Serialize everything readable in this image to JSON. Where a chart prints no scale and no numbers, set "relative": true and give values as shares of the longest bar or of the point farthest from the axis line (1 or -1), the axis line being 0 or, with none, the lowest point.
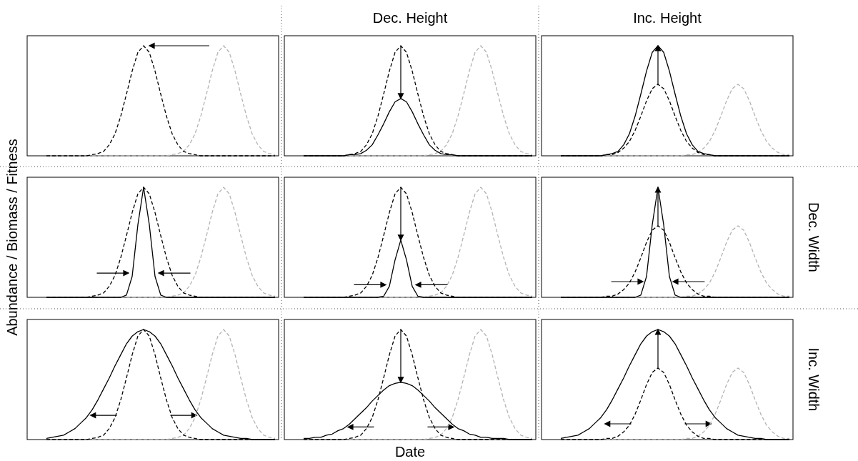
{
  "chart_data": [
    {
      "type": "line",
      "relative": true,
      "categories": [
        null,
        null,
        null,
        null,
        null,
        null,
        null,
        null,
        null,
        null,
        null,
        null,
        null,
        null,
        null,
        null,
        null,
        null,
        null,
        null,
        null,
        null,
        null,
        null,
        null,
        null,
        null,
        null,
        null,
        null,
        null,
        null,
        null,
        null,
        null,
        null,
        null,
        null,
        null,
        null,
        null
      ],
      "series": [
        {
          "color": "#b3b3b3",
          "line_style": "dashed",
          "values": [
            0,
            0,
            0,
            0,
            0,
            0,
            0,
            0,
            0,
            0,
            0,
            0,
            0,
            0,
            0,
            0,
            0,
            0,
            0,
            0,
            0,
            0,
            0.01,
            0.02,
            0.04,
            0.1,
            0.2,
            0.36,
            0.56,
            0.77,
            0.94,
            1,
            0.94,
            0.77,
            0.56,
            0.36,
            0.2,
            0.1,
            0.04,
            0.02,
            0.01
          ]
        },
        {
          "color": "#000000",
          "line_style": "dashed",
          "values": [
            0,
            0,
            0,
            0,
            0,
            0,
            0,
            0,
            0.01,
            0.02,
            0.04,
            0.1,
            0.2,
            0.36,
            0.56,
            0.77,
            0.94,
            1,
            0.94,
            0.77,
            0.56,
            0.36,
            0.2,
            0.1,
            0.04,
            0.02,
            0.01,
            0,
            0,
            0,
            0,
            0,
            0,
            0,
            0,
            0,
            0,
            0,
            0,
            0,
            0
          ]
        }
      ]
    },
    {
      "type": "line",
      "relative": true,
      "title": "Dec. Height",
      "categories": [
        null,
        null,
        null,
        null,
        null,
        null,
        null,
        null,
        null,
        null,
        null,
        null,
        null,
        null,
        null,
        null,
        null,
        null,
        null,
        null,
        null,
        null,
        null,
        null,
        null,
        null,
        null,
        null,
        null,
        null,
        null,
        null,
        null,
        null,
        null,
        null,
        null,
        null,
        null,
        null,
        null
      ],
      "series": [
        {
          "color": "#b3b3b3",
          "line_style": "dashed",
          "values": [
            0,
            0,
            0,
            0,
            0,
            0,
            0,
            0,
            0,
            0,
            0,
            0,
            0,
            0,
            0,
            0,
            0,
            0,
            0,
            0,
            0,
            0,
            0.01,
            0.02,
            0.04,
            0.1,
            0.2,
            0.36,
            0.56,
            0.77,
            0.94,
            1,
            0.94,
            0.77,
            0.56,
            0.36,
            0.2,
            0.1,
            0.04,
            0.02,
            0.01
          ]
        },
        {
          "color": "#000000",
          "line_style": "dashed",
          "values": [
            0,
            0,
            0,
            0,
            0,
            0,
            0,
            0,
            0.01,
            0.02,
            0.04,
            0.1,
            0.2,
            0.36,
            0.56,
            0.77,
            0.94,
            1,
            0.94,
            0.77,
            0.56,
            0.36,
            0.2,
            0.1,
            0.04,
            0.02,
            0.01,
            0,
            0,
            0,
            0,
            0,
            0,
            0,
            0,
            0,
            0,
            0,
            0,
            0,
            0
          ]
        },
        {
          "color": "#000000",
          "line_style": "solid",
          "values": [
            0,
            0,
            0,
            0,
            0,
            0,
            0,
            0,
            0.01,
            0.01,
            0.02,
            0.05,
            0.1,
            0.19,
            0.29,
            0.4,
            0.49,
            0.52,
            0.49,
            0.4,
            0.29,
            0.19,
            0.1,
            0.05,
            0.02,
            0.01,
            0.01,
            0,
            0,
            0,
            0,
            0,
            0,
            0,
            0,
            0,
            0,
            0,
            0,
            0,
            0
          ]
        }
      ]
    },
    {
      "type": "line",
      "relative": true,
      "title": "Inc. Height",
      "categories": [
        null,
        null,
        null,
        null,
        null,
        null,
        null,
        null,
        null,
        null,
        null,
        null,
        null,
        null,
        null,
        null,
        null,
        null,
        null,
        null,
        null,
        null,
        null,
        null,
        null,
        null,
        null,
        null,
        null,
        null,
        null,
        null,
        null,
        null,
        null,
        null,
        null,
        null,
        null,
        null,
        null
      ],
      "series": [
        {
          "color": "#b3b3b3",
          "line_style": "dashed",
          "values": [
            0,
            0,
            0,
            0,
            0,
            0,
            0,
            0,
            0,
            0,
            0,
            0,
            0,
            0,
            0,
            0,
            0,
            0,
            0,
            0,
            0,
            0,
            0.01,
            0.01,
            0.03,
            0.07,
            0.13,
            0.23,
            0.36,
            0.5,
            0.61,
            0.65,
            0.61,
            0.5,
            0.36,
            0.23,
            0.13,
            0.07,
            0.03,
            0.01,
            0.01
          ]
        },
        {
          "color": "#000000",
          "line_style": "dashed",
          "values": [
            0,
            0,
            0,
            0,
            0,
            0,
            0,
            0,
            0.01,
            0.01,
            0.03,
            0.07,
            0.13,
            0.23,
            0.36,
            0.5,
            0.61,
            0.65,
            0.61,
            0.5,
            0.36,
            0.23,
            0.13,
            0.07,
            0.03,
            0.01,
            0.01,
            0,
            0,
            0,
            0,
            0,
            0,
            0,
            0,
            0,
            0,
            0,
            0,
            0,
            0
          ]
        },
        {
          "color": "#000000",
          "line_style": "solid",
          "values": [
            0,
            0,
            0,
            0,
            0,
            0,
            0,
            0,
            0.01,
            0.02,
            0.04,
            0.1,
            0.2,
            0.36,
            0.56,
            0.77,
            0.94,
            1,
            0.94,
            0.77,
            0.56,
            0.36,
            0.2,
            0.1,
            0.04,
            0.02,
            0.01,
            0,
            0,
            0,
            0,
            0,
            0,
            0,
            0,
            0,
            0,
            0,
            0,
            0,
            0
          ]
        }
      ]
    },
    {
      "type": "line",
      "relative": true,
      "ylabel": "Abundance / Biomass / Fitness",
      "categories": [
        null,
        null,
        null,
        null,
        null,
        null,
        null,
        null,
        null,
        null,
        null,
        null,
        null,
        null,
        null,
        null,
        null,
        null,
        null,
        null,
        null,
        null,
        null,
        null,
        null,
        null,
        null,
        null,
        null,
        null,
        null,
        null,
        null,
        null,
        null,
        null,
        null,
        null,
        null,
        null,
        null
      ],
      "series": [
        {
          "color": "#b3b3b3",
          "line_style": "dashed",
          "values": [
            0,
            0,
            0,
            0,
            0,
            0,
            0,
            0,
            0,
            0,
            0,
            0,
            0,
            0,
            0,
            0,
            0,
            0,
            0,
            0,
            0,
            0,
            0.01,
            0.02,
            0.04,
            0.1,
            0.2,
            0.36,
            0.56,
            0.77,
            0.94,
            1,
            0.94,
            0.77,
            0.56,
            0.36,
            0.2,
            0.1,
            0.04,
            0.02,
            0.01
          ]
        },
        {
          "color": "#000000",
          "line_style": "dashed",
          "values": [
            0,
            0,
            0,
            0,
            0,
            0,
            0,
            0,
            0.01,
            0.02,
            0.04,
            0.1,
            0.2,
            0.36,
            0.56,
            0.77,
            0.94,
            1,
            0.94,
            0.77,
            0.56,
            0.36,
            0.2,
            0.1,
            0.04,
            0.02,
            0.01,
            0,
            0,
            0,
            0,
            0,
            0,
            0,
            0,
            0,
            0,
            0,
            0,
            0,
            0
          ]
        },
        {
          "color": "#000000",
          "line_style": "solid",
          "values": [
            0,
            0,
            0,
            0,
            0,
            0,
            0,
            0,
            0,
            0,
            0,
            0,
            0,
            0,
            0.02,
            0.19,
            0.66,
            1,
            0.66,
            0.19,
            0.02,
            0,
            0,
            0,
            0,
            0,
            0,
            0,
            0,
            0,
            0,
            0,
            0,
            0,
            0,
            0,
            0,
            0,
            0,
            0,
            0
          ]
        }
      ]
    },
    {
      "type": "line",
      "relative": true,
      "categories": [
        null,
        null,
        null,
        null,
        null,
        null,
        null,
        null,
        null,
        null,
        null,
        null,
        null,
        null,
        null,
        null,
        null,
        null,
        null,
        null,
        null,
        null,
        null,
        null,
        null,
        null,
        null,
        null,
        null,
        null,
        null,
        null,
        null,
        null,
        null,
        null,
        null,
        null,
        null,
        null,
        null
      ],
      "series": [
        {
          "color": "#b3b3b3",
          "line_style": "dashed",
          "values": [
            0,
            0,
            0,
            0,
            0,
            0,
            0,
            0,
            0,
            0,
            0,
            0,
            0,
            0,
            0,
            0,
            0,
            0,
            0,
            0,
            0,
            0,
            0.01,
            0.02,
            0.04,
            0.1,
            0.2,
            0.36,
            0.56,
            0.77,
            0.94,
            1,
            0.94,
            0.77,
            0.56,
            0.36,
            0.2,
            0.1,
            0.04,
            0.02,
            0.01
          ]
        },
        {
          "color": "#000000",
          "line_style": "dashed",
          "values": [
            0,
            0,
            0,
            0,
            0,
            0,
            0,
            0,
            0.01,
            0.02,
            0.04,
            0.1,
            0.2,
            0.36,
            0.56,
            0.77,
            0.94,
            1,
            0.94,
            0.77,
            0.56,
            0.36,
            0.2,
            0.1,
            0.04,
            0.02,
            0.01,
            0,
            0,
            0,
            0,
            0,
            0,
            0,
            0,
            0,
            0,
            0,
            0,
            0,
            0
          ]
        },
        {
          "color": "#000000",
          "line_style": "solid",
          "values": [
            0,
            0,
            0,
            0,
            0,
            0,
            0,
            0,
            0,
            0,
            0,
            0,
            0,
            0,
            0.01,
            0.1,
            0.34,
            0.52,
            0.34,
            0.1,
            0.01,
            0,
            0,
            0,
            0,
            0,
            0,
            0,
            0,
            0,
            0,
            0,
            0,
            0,
            0,
            0,
            0,
            0,
            0,
            0,
            0
          ]
        }
      ]
    },
    {
      "type": "line",
      "relative": true,
      "y2label": "Dec. Width",
      "categories": [
        null,
        null,
        null,
        null,
        null,
        null,
        null,
        null,
        null,
        null,
        null,
        null,
        null,
        null,
        null,
        null,
        null,
        null,
        null,
        null,
        null,
        null,
        null,
        null,
        null,
        null,
        null,
        null,
        null,
        null,
        null,
        null,
        null,
        null,
        null,
        null,
        null,
        null,
        null,
        null,
        null
      ],
      "series": [
        {
          "color": "#b3b3b3",
          "line_style": "dashed",
          "values": [
            0,
            0,
            0,
            0,
            0,
            0,
            0,
            0,
            0,
            0,
            0,
            0,
            0,
            0,
            0,
            0,
            0,
            0,
            0,
            0,
            0,
            0,
            0.01,
            0.01,
            0.03,
            0.07,
            0.13,
            0.23,
            0.36,
            0.5,
            0.61,
            0.65,
            0.61,
            0.5,
            0.36,
            0.23,
            0.13,
            0.07,
            0.03,
            0.01,
            0.01
          ]
        },
        {
          "color": "#000000",
          "line_style": "dashed",
          "values": [
            0,
            0,
            0,
            0,
            0,
            0,
            0,
            0,
            0.01,
            0.01,
            0.03,
            0.07,
            0.13,
            0.23,
            0.36,
            0.5,
            0.61,
            0.65,
            0.61,
            0.5,
            0.36,
            0.23,
            0.13,
            0.07,
            0.03,
            0.01,
            0.01,
            0,
            0,
            0,
            0,
            0,
            0,
            0,
            0,
            0,
            0,
            0,
            0,
            0,
            0
          ]
        },
        {
          "color": "#000000",
          "line_style": "solid",
          "values": [
            0,
            0,
            0,
            0,
            0,
            0,
            0,
            0,
            0,
            0,
            0,
            0,
            0,
            0,
            0.02,
            0.19,
            0.66,
            1,
            0.66,
            0.19,
            0.02,
            0,
            0,
            0,
            0,
            0,
            0,
            0,
            0,
            0,
            0,
            0,
            0,
            0,
            0,
            0,
            0,
            0,
            0,
            0,
            0
          ]
        }
      ]
    },
    {
      "type": "line",
      "relative": true,
      "categories": [
        null,
        null,
        null,
        null,
        null,
        null,
        null,
        null,
        null,
        null,
        null,
        null,
        null,
        null,
        null,
        null,
        null,
        null,
        null,
        null,
        null,
        null,
        null,
        null,
        null,
        null,
        null,
        null,
        null,
        null,
        null,
        null,
        null,
        null,
        null,
        null,
        null,
        null,
        null,
        null,
        null
      ],
      "series": [
        {
          "color": "#b3b3b3",
          "line_style": "dashed",
          "values": [
            0,
            0,
            0,
            0,
            0,
            0,
            0,
            0,
            0,
            0,
            0,
            0,
            0,
            0,
            0,
            0,
            0,
            0,
            0,
            0,
            0,
            0,
            0.01,
            0.02,
            0.04,
            0.1,
            0.2,
            0.36,
            0.56,
            0.77,
            0.94,
            1,
            0.94,
            0.77,
            0.56,
            0.36,
            0.2,
            0.1,
            0.04,
            0.02,
            0.01
          ]
        },
        {
          "color": "#000000",
          "line_style": "dashed",
          "values": [
            0,
            0,
            0,
            0,
            0,
            0,
            0,
            0,
            0.01,
            0.02,
            0.04,
            0.1,
            0.2,
            0.36,
            0.56,
            0.77,
            0.94,
            1,
            0.94,
            0.77,
            0.56,
            0.36,
            0.2,
            0.1,
            0.04,
            0.02,
            0.01,
            0,
            0,
            0,
            0,
            0,
            0,
            0,
            0,
            0,
            0,
            0,
            0,
            0,
            0
          ]
        },
        {
          "color": "#000000",
          "line_style": "solid",
          "values": [
            0.01,
            0.02,
            0.03,
            0.04,
            0.07,
            0.1,
            0.15,
            0.2,
            0.27,
            0.36,
            0.46,
            0.56,
            0.67,
            0.77,
            0.87,
            0.94,
            0.98,
            1,
            0.98,
            0.94,
            0.87,
            0.77,
            0.67,
            0.56,
            0.46,
            0.36,
            0.27,
            0.2,
            0.15,
            0.1,
            0.07,
            0.04,
            0.03,
            0.02,
            0.01,
            0.01,
            0,
            0,
            0,
            0,
            0
          ]
        }
      ]
    },
    {
      "type": "line",
      "relative": true,
      "xlabel": "Date",
      "categories": [
        null,
        null,
        null,
        null,
        null,
        null,
        null,
        null,
        null,
        null,
        null,
        null,
        null,
        null,
        null,
        null,
        null,
        null,
        null,
        null,
        null,
        null,
        null,
        null,
        null,
        null,
        null,
        null,
        null,
        null,
        null,
        null,
        null,
        null,
        null,
        null,
        null,
        null,
        null,
        null,
        null
      ],
      "series": [
        {
          "color": "#b3b3b3",
          "line_style": "dashed",
          "values": [
            0,
            0,
            0,
            0,
            0,
            0,
            0,
            0,
            0,
            0,
            0,
            0,
            0,
            0,
            0,
            0,
            0,
            0,
            0,
            0,
            0,
            0,
            0.01,
            0.02,
            0.04,
            0.1,
            0.2,
            0.36,
            0.56,
            0.77,
            0.94,
            1,
            0.94,
            0.77,
            0.56,
            0.36,
            0.2,
            0.1,
            0.04,
            0.02,
            0.01
          ]
        },
        {
          "color": "#000000",
          "line_style": "dashed",
          "values": [
            0,
            0,
            0,
            0,
            0,
            0,
            0,
            0,
            0.01,
            0.02,
            0.04,
            0.1,
            0.2,
            0.36,
            0.56,
            0.77,
            0.94,
            1,
            0.94,
            0.77,
            0.56,
            0.36,
            0.2,
            0.1,
            0.04,
            0.02,
            0.01,
            0,
            0,
            0,
            0,
            0,
            0,
            0,
            0,
            0,
            0,
            0,
            0,
            0,
            0
          ]
        },
        {
          "color": "#000000",
          "line_style": "solid",
          "values": [
            0.01,
            0.01,
            0.02,
            0.02,
            0.04,
            0.05,
            0.08,
            0.1,
            0.14,
            0.19,
            0.24,
            0.29,
            0.35,
            0.4,
            0.45,
            0.49,
            0.51,
            0.52,
            0.51,
            0.49,
            0.45,
            0.4,
            0.35,
            0.29,
            0.24,
            0.19,
            0.14,
            0.1,
            0.08,
            0.05,
            0.04,
            0.02,
            0.02,
            0.01,
            0.01,
            0.01,
            0,
            0,
            0,
            0,
            0
          ]
        }
      ]
    },
    {
      "type": "line",
      "relative": true,
      "y2label": "Inc. Width",
      "categories": [
        null,
        null,
        null,
        null,
        null,
        null,
        null,
        null,
        null,
        null,
        null,
        null,
        null,
        null,
        null,
        null,
        null,
        null,
        null,
        null,
        null,
        null,
        null,
        null,
        null,
        null,
        null,
        null,
        null,
        null,
        null,
        null,
        null,
        null,
        null,
        null,
        null,
        null,
        null,
        null,
        null
      ],
      "series": [
        {
          "color": "#b3b3b3",
          "line_style": "dashed",
          "values": [
            0,
            0,
            0,
            0,
            0,
            0,
            0,
            0,
            0,
            0,
            0,
            0,
            0,
            0,
            0,
            0,
            0,
            0,
            0,
            0,
            0,
            0,
            0.01,
            0.01,
            0.03,
            0.07,
            0.13,
            0.23,
            0.36,
            0.5,
            0.61,
            0.65,
            0.61,
            0.5,
            0.36,
            0.23,
            0.13,
            0.07,
            0.03,
            0.01,
            0.01
          ]
        },
        {
          "color": "#000000",
          "line_style": "dashed",
          "values": [
            0,
            0,
            0,
            0,
            0,
            0,
            0,
            0,
            0.01,
            0.01,
            0.03,
            0.07,
            0.13,
            0.23,
            0.36,
            0.5,
            0.61,
            0.65,
            0.61,
            0.5,
            0.36,
            0.23,
            0.13,
            0.07,
            0.03,
            0.01,
            0.01,
            0,
            0,
            0,
            0,
            0,
            0,
            0,
            0,
            0,
            0,
            0,
            0,
            0,
            0
          ]
        },
        {
          "color": "#000000",
          "line_style": "solid",
          "values": [
            0.01,
            0.02,
            0.03,
            0.04,
            0.07,
            0.1,
            0.15,
            0.2,
            0.27,
            0.36,
            0.46,
            0.56,
            0.67,
            0.77,
            0.87,
            0.94,
            0.98,
            1,
            0.98,
            0.94,
            0.87,
            0.77,
            0.67,
            0.56,
            0.46,
            0.36,
            0.27,
            0.2,
            0.15,
            0.1,
            0.07,
            0.04,
            0.03,
            0.02,
            0.01,
            0.01,
            0,
            0,
            0,
            0,
            0
          ]
        }
      ]
    }
  ]
}
